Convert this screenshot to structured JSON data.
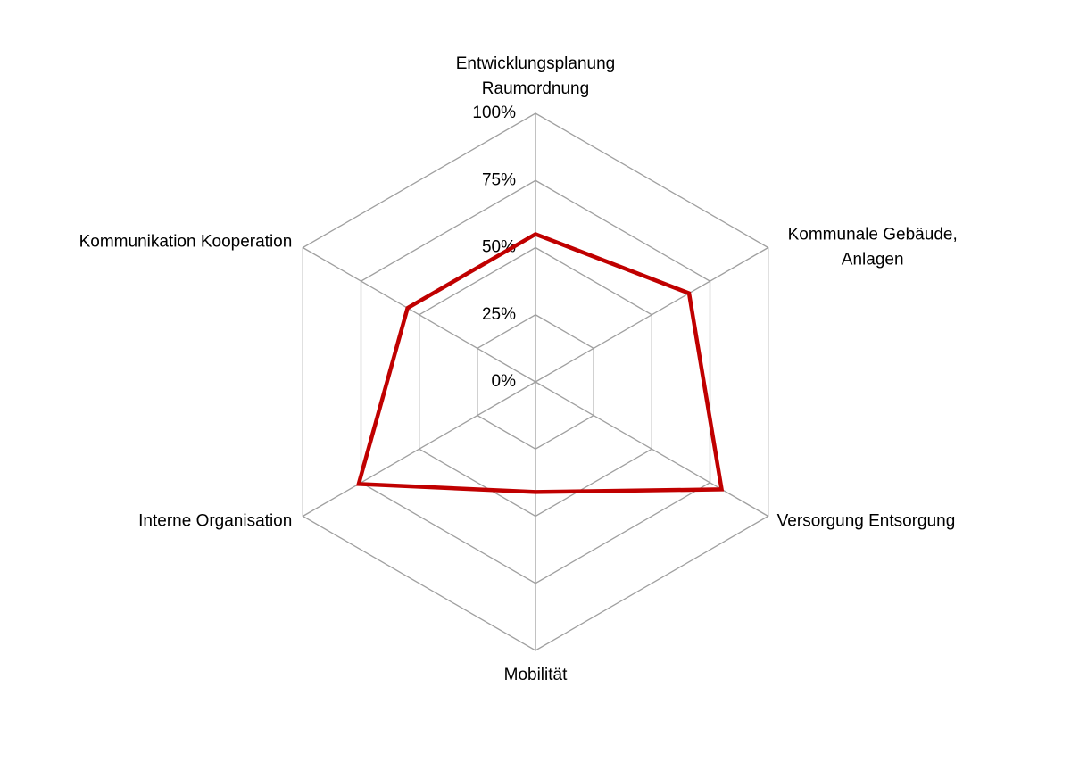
{
  "chart_data": {
    "type": "radar",
    "categories": [
      "Entwicklungsplanung\nRaumordnung",
      "Kommunale Gebäude,\nAnlagen",
      "Versorgung Entsorgung",
      "Mobilität",
      "Interne Organisation",
      "Kommunikation Kooperation"
    ],
    "series": [
      {
        "color": "#c00000",
        "values": [
          55,
          66,
          80,
          41,
          76,
          55
        ]
      }
    ],
    "ylim": [
      0,
      100
    ],
    "yticks": [
      {
        "value": 0,
        "label": "0%"
      },
      {
        "value": 25,
        "label": "25%"
      },
      {
        "value": 50,
        "label": "50%"
      },
      {
        "value": 75,
        "label": "75%"
      },
      {
        "value": 100,
        "label": "100%"
      }
    ],
    "grid": true
  }
}
